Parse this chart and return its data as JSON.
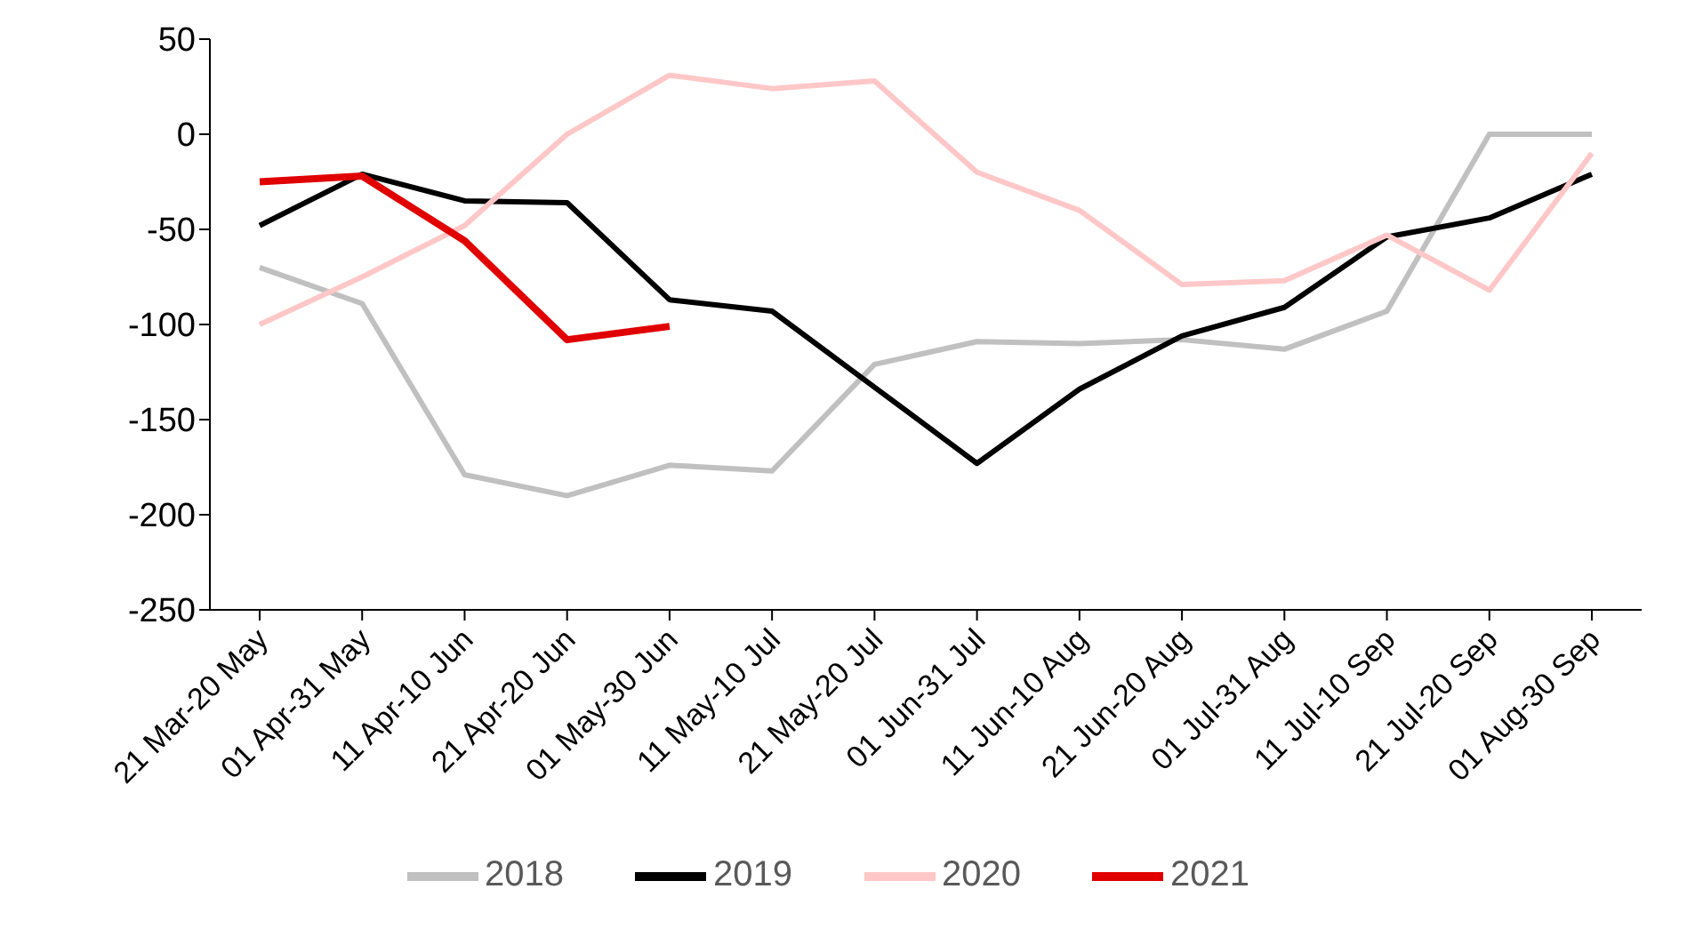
{
  "chart_data": {
    "type": "line",
    "categories": [
      "21 Mar-20 May",
      "01 Apr-31 May",
      "11 Apr-10 Jun",
      "21 Apr-20 Jun",
      "01 May-30 Jun",
      "11 May-10 Jul",
      "21 May-20 Jul",
      "01 Jun-31 Jul",
      "11 Jun-10 Aug",
      "21 Jun-20 Aug",
      "01 Jul-31 Aug",
      "11 Jul-10 Sep",
      "21 Jul-20 Sep",
      "01 Aug-30 Sep"
    ],
    "series": [
      {
        "name": "2018",
        "color": "#c0c0c0",
        "values": [
          -70,
          -89,
          -179,
          -190,
          -174,
          -177,
          -121,
          -109,
          -110,
          -108,
          -113,
          -93,
          0,
          0
        ]
      },
      {
        "name": "2019",
        "color": "#000000",
        "values": [
          -48,
          -21,
          -35,
          -36,
          -87,
          -93,
          -133,
          -173,
          -134,
          -106,
          -91,
          -54,
          -44,
          -21
        ]
      },
      {
        "name": "2020",
        "color": "#ffc7c7",
        "values": [
          -100,
          -75,
          -48,
          0,
          31,
          24,
          28,
          -20,
          -40,
          -79,
          -77,
          -53,
          -82,
          -10
        ]
      },
      {
        "name": "2021",
        "color": "#e00000",
        "values": [
          -25,
          -22,
          -56,
          -108,
          -101,
          null,
          null,
          null,
          null,
          null,
          null,
          null,
          null,
          null
        ]
      }
    ],
    "ylim": [
      -250,
      50
    ],
    "yticks": [
      -250,
      -200,
      -150,
      -100,
      -50,
      0,
      50
    ],
    "grid": false,
    "legend": "bottom",
    "marker": "none",
    "line_style": "solid"
  }
}
